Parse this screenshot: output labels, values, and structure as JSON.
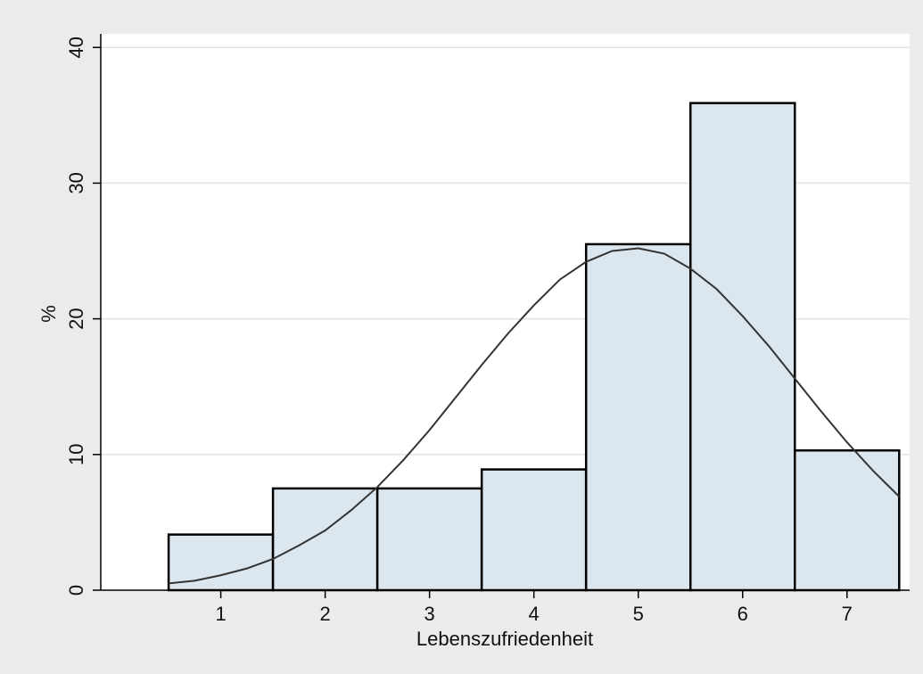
{
  "chart_data": {
    "type": "histogram",
    "x_label": "Lebenszufriedenheit",
    "y_label": "%",
    "bins": [
      0.5,
      1.5,
      2.5,
      3.5,
      4.5,
      5.5,
      6.5,
      7.5
    ],
    "values": [
      4.1,
      7.5,
      7.5,
      8.9,
      25.5,
      35.9,
      10.3
    ],
    "color": "#dce6ee",
    "edge_color": "#000000",
    "density_curve": {
      "color": "#333333",
      "x": [
        0.5,
        0.75,
        1.0,
        1.25,
        1.5,
        1.75,
        2.0,
        2.25,
        2.5,
        2.75,
        3.0,
        3.25,
        3.5,
        3.75,
        4.0,
        4.25,
        4.5,
        4.75,
        5.0,
        5.25,
        5.5,
        5.75,
        6.0,
        6.25,
        6.5,
        6.75,
        7.0,
        7.25,
        7.5
      ],
      "y": [
        0.5,
        0.7,
        1.1,
        1.6,
        2.3,
        3.3,
        4.4,
        5.9,
        7.6,
        9.6,
        11.8,
        14.2,
        16.6,
        18.9,
        21.0,
        22.9,
        24.2,
        25.0,
        25.2,
        24.8,
        23.7,
        22.2,
        20.2,
        18.0,
        15.6,
        13.2,
        10.9,
        8.8,
        6.9
      ]
    },
    "xlim": [
      -0.15,
      7.6
    ],
    "ylim": [
      0,
      41
    ],
    "xticks": [
      1,
      2,
      3,
      4,
      5,
      6,
      7
    ],
    "yticks": [
      0,
      10,
      20,
      30,
      40
    ],
    "grid": true
  }
}
